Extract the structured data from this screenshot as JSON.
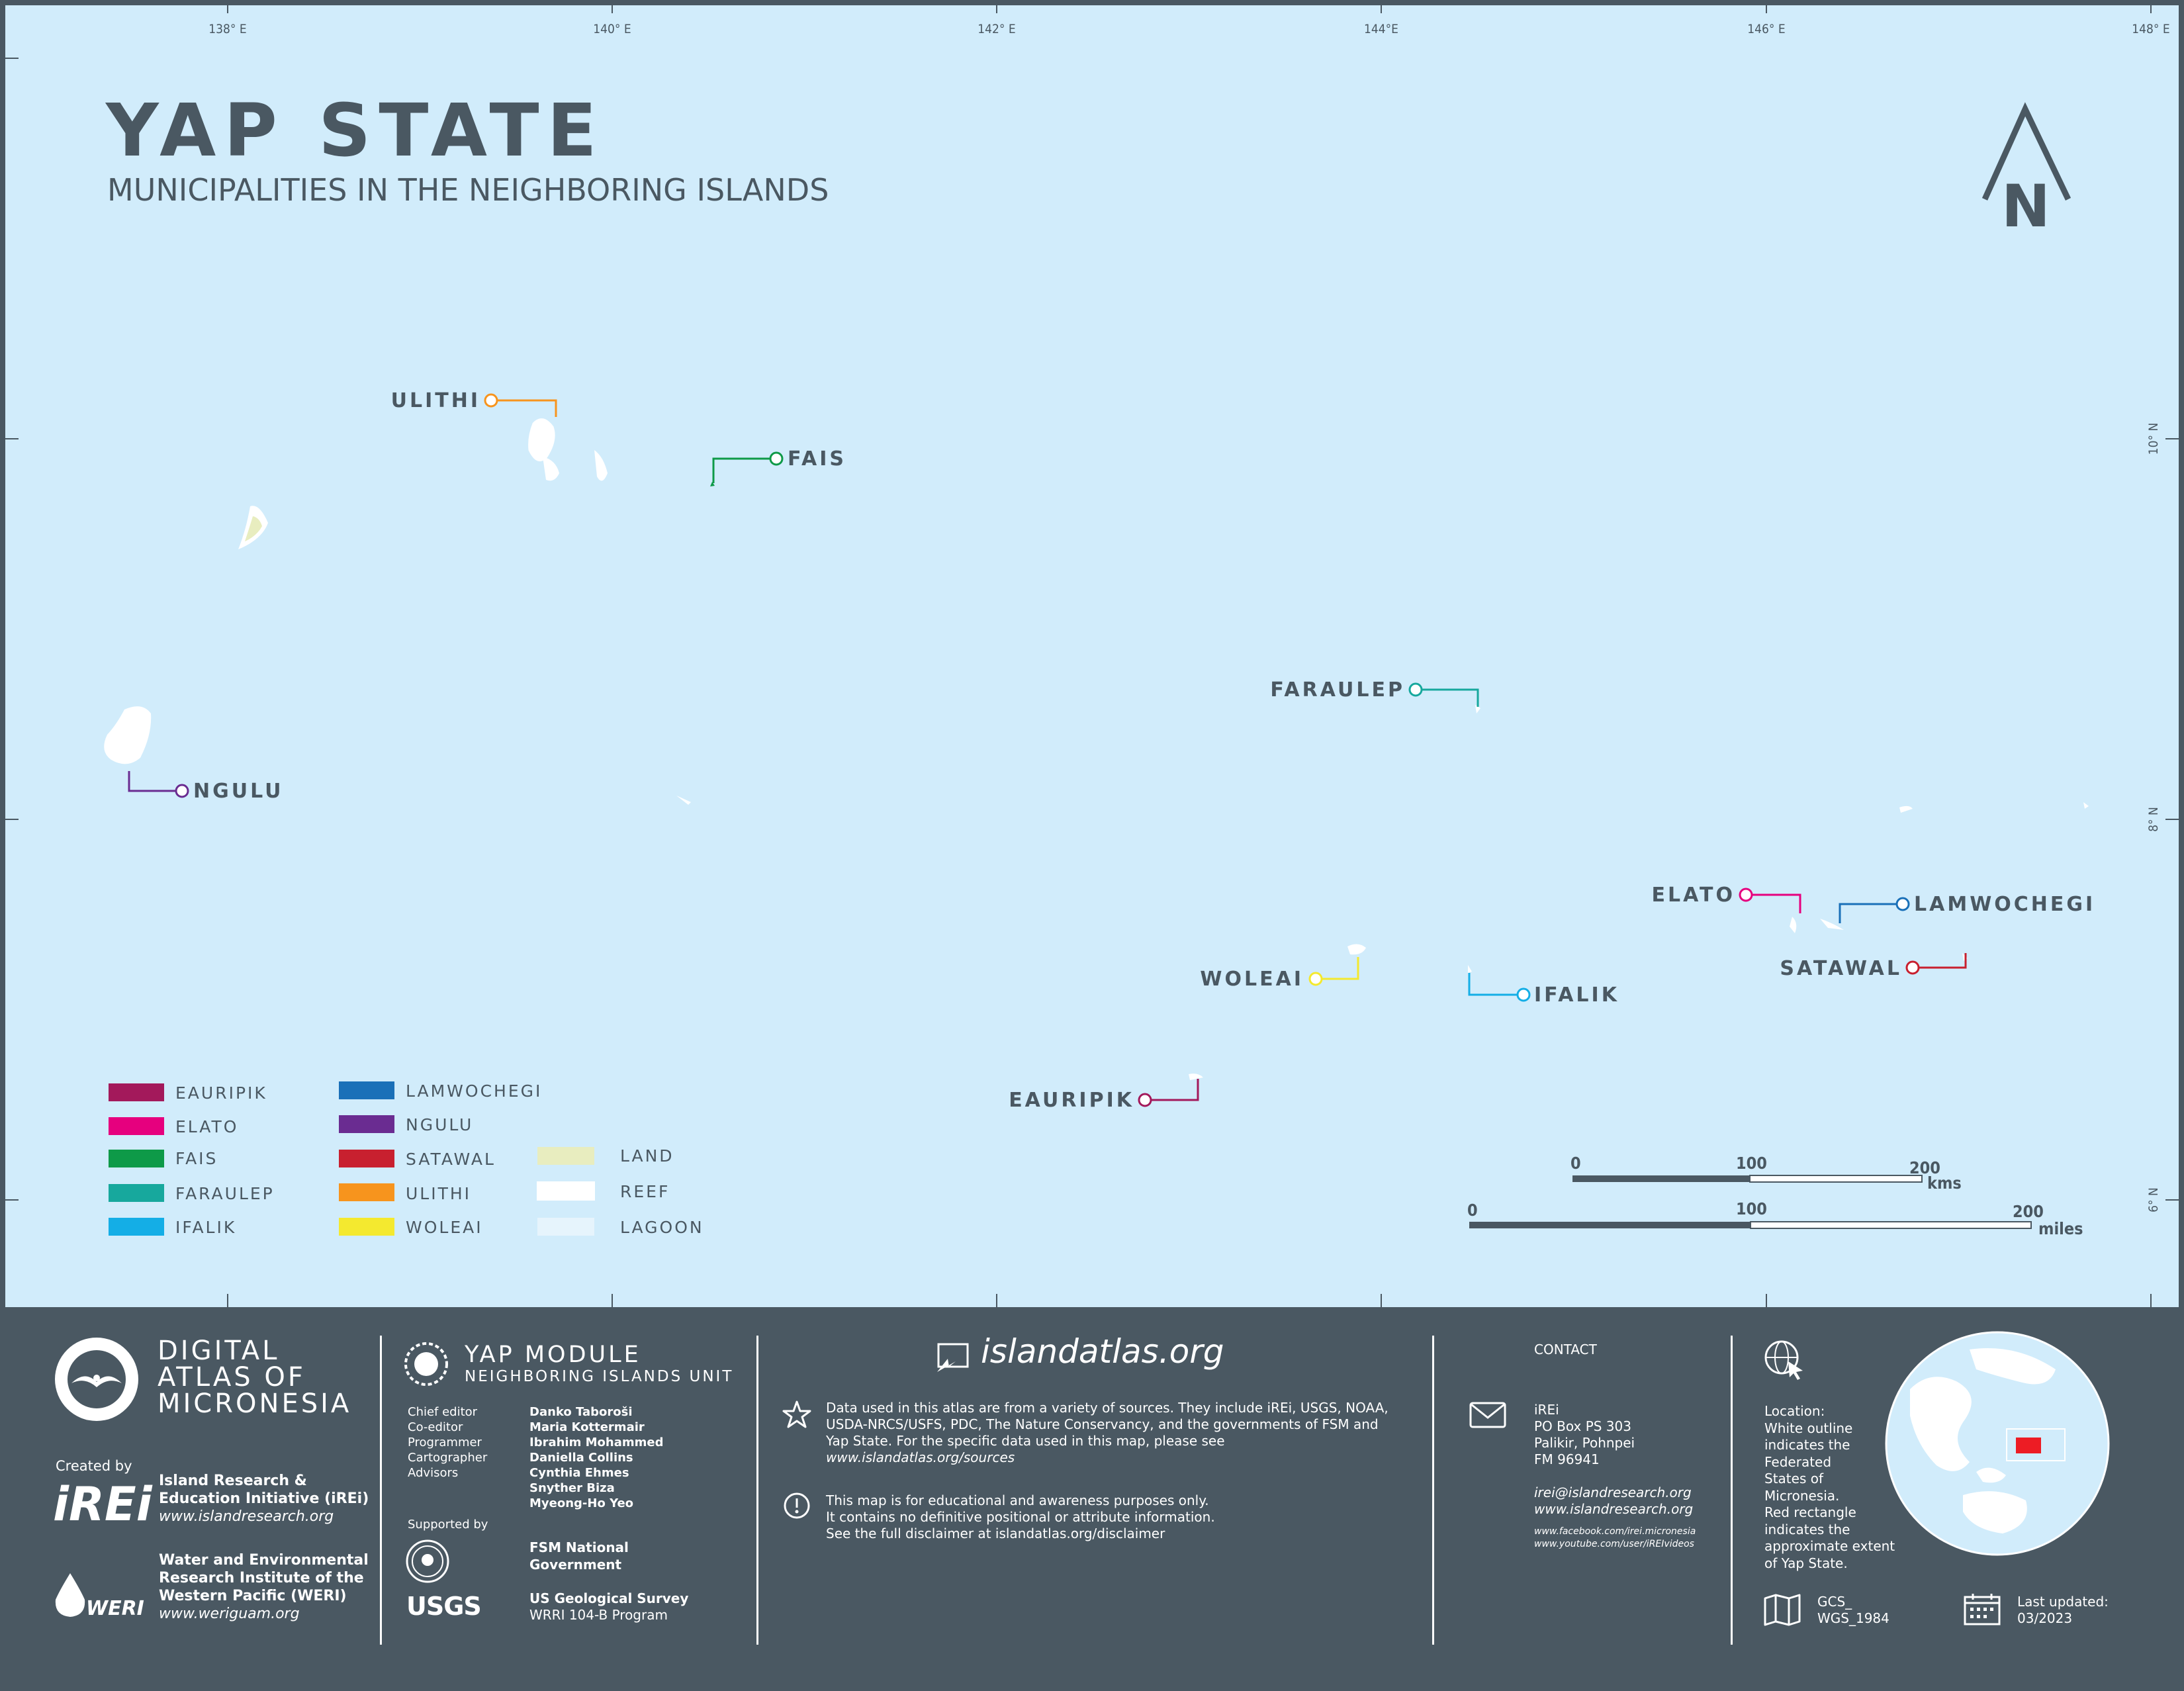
{
  "map": {
    "title": "YAP STATE",
    "subtitle": "MUNICIPALITIES IN THE NEIGHBORING ISLANDS",
    "north_label": "N",
    "colors": {
      "ocean": "#d1ecfb",
      "frame": "#4a5862",
      "land": "#e8edbf",
      "reef": "#ffffff",
      "lagoon": "#e6f4fc"
    },
    "graticule": {
      "top_labels": [
        "138° E",
        "140° E",
        "142° E",
        "144°E",
        "146° E",
        "148° E"
      ],
      "right_labels": [
        "10° N",
        "8° N",
        "6° N"
      ]
    },
    "islands": [
      {
        "name": "ULITHI",
        "color": "#f7941d"
      },
      {
        "name": "FAIS",
        "color": "#0e9a48"
      },
      {
        "name": "NGULU",
        "color": "#6a2c91"
      },
      {
        "name": "FARAULEP",
        "color": "#17a89d"
      },
      {
        "name": "ELATO",
        "color": "#e6007e"
      },
      {
        "name": "LAMWOCHEGI",
        "color": "#1a70b8"
      },
      {
        "name": "SATAWAL",
        "color": "#c8202f"
      },
      {
        "name": "WOLEAI",
        "color": "#f4e92f"
      },
      {
        "name": "IFALIK",
        "color": "#14aee6"
      },
      {
        "name": "EAURIPIK",
        "color": "#a3195b"
      }
    ],
    "legend": {
      "municipalities": [
        {
          "name": "EAURIPIK",
          "color": "#a3195b"
        },
        {
          "name": "ELATO",
          "color": "#e6007e"
        },
        {
          "name": "FAIS",
          "color": "#0e9a48"
        },
        {
          "name": "FARAULEP",
          "color": "#17a89d"
        },
        {
          "name": "IFALIK",
          "color": "#14aee6"
        },
        {
          "name": "LAMWOCHEGI",
          "color": "#1a70b8"
        },
        {
          "name": "NGULU",
          "color": "#6a2c91"
        },
        {
          "name": "SATAWAL",
          "color": "#c8202f"
        },
        {
          "name": "ULITHI",
          "color": "#f7941d"
        },
        {
          "name": "WOLEAI",
          "color": "#f4e92f"
        }
      ],
      "types": [
        {
          "name": "LAND",
          "color": "#e8edbf"
        },
        {
          "name": "REEF",
          "color": "#ffffff"
        },
        {
          "name": "LAGOON",
          "color": "#e6f4fc"
        }
      ]
    },
    "scale": {
      "km": {
        "labels": [
          "0",
          "100",
          "200"
        ],
        "unit": "kms"
      },
      "miles": {
        "labels": [
          "0",
          "100",
          "200"
        ],
        "unit": "miles"
      }
    }
  },
  "footer": {
    "atlas": {
      "line1": "DIGITAL",
      "line2": "ATLAS OF",
      "line3": "MICRONESIA"
    },
    "created_by": "Created by",
    "irei": {
      "logo": "iREi",
      "name1": "Island Research &",
      "name2": "Education Initiative (iREi)",
      "url": "www.islandresearch.org"
    },
    "weri": {
      "logo": "WERI",
      "name1": "Water and Environmental",
      "name2": "Research Institute of the",
      "name3": "Western Pacific (WERI)",
      "url": "www.weriguam.org"
    },
    "module": {
      "title": "YAP MODULE",
      "subtitle": "NEIGHBORING ISLANDS UNIT"
    },
    "credits": {
      "roles": [
        "Chief editor",
        "Co-editor",
        "Programmer",
        "Cartographer",
        "Advisors"
      ],
      "names": [
        "Danko Taboroši",
        "Maria Kottermair",
        "Ibrahim Mohammed",
        "Daniella Collins",
        "Cynthia Ehmes",
        "Snyther Biza",
        "Myeong-Ho Yeo"
      ]
    },
    "supported_by": "Supported by",
    "fsm": {
      "line1": "FSM National",
      "line2": "Government"
    },
    "usgs": {
      "logo": "USGS",
      "line1": "US Geological Survey",
      "line2": "WRRI 104-B Program"
    },
    "site": "islandatlas.org",
    "sources": [
      "Data used in this atlas are from a variety of sources. They include iREi, USGS, NOAA,",
      "USDA-NRCS/USFS, PDC, The Nature Conservancy, and the governments of FSM and",
      "Yap State. For the specific data used in this map, please see",
      "www.islandatlas.org/sources"
    ],
    "disclaimer": [
      "This map is for educational and awareness purposes only.",
      "It contains no definitive positional or attribute information.",
      "See the full disclaimer at islandatlas.org/disclaimer"
    ],
    "contact": {
      "heading": "CONTACT",
      "address": [
        "iREi",
        "PO Box PS 303",
        "Palikir, Pohnpei",
        "FM 96941"
      ],
      "links": [
        "irei@islandresearch.org",
        "www.islandresearch.org"
      ],
      "social": [
        "www.facebook.com/irei.micronesia",
        "www.youtube.com/user/iREIvideos"
      ]
    },
    "location": [
      "Location:",
      "White outline",
      "indicates the",
      "Federated",
      "States of",
      "Micronesia.",
      "Red rectangle",
      "indicates the",
      "approximate extent",
      "of Yap State."
    ],
    "projection": [
      "GCS_",
      "WGS_1984"
    ],
    "updated": [
      "Last updated:",
      "03/2023"
    ]
  }
}
